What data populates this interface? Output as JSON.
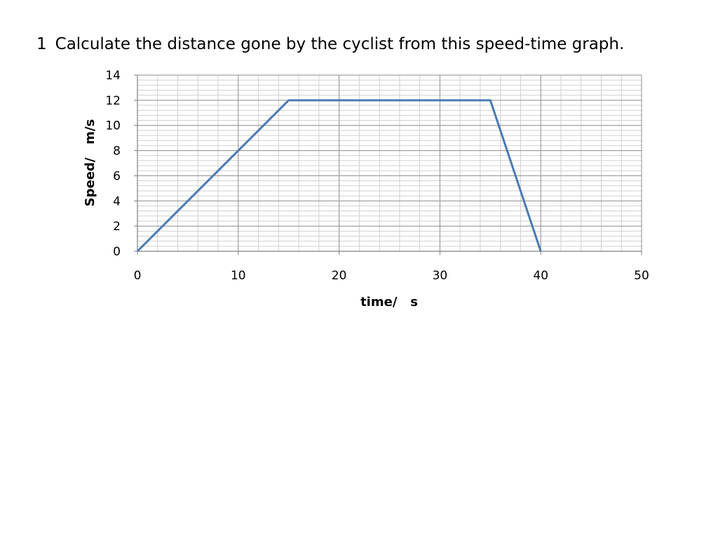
{
  "question": {
    "number": "1",
    "text": "Calculate the distance gone by the cyclist from this speed-time graph."
  },
  "chart_data": {
    "type": "line",
    "xlabel": "time/   s",
    "ylabel": "Speed/   m/s",
    "xlim": [
      0,
      50
    ],
    "ylim": [
      0,
      14
    ],
    "x_ticks": [
      0,
      10,
      20,
      30,
      40,
      50
    ],
    "y_ticks": [
      0,
      2,
      4,
      6,
      8,
      10,
      12,
      14
    ],
    "x_tick_labels": [
      "0",
      "10",
      "20",
      "30",
      "40",
      "50"
    ],
    "y_tick_labels": [
      "0",
      "2",
      "4",
      "6",
      "8",
      "10",
      "12",
      "14"
    ],
    "grid": true,
    "series": [
      {
        "x": [
          0,
          15,
          35,
          40
        ],
        "y": [
          0,
          12,
          12,
          0
        ],
        "color": "#4a7ab5"
      }
    ]
  }
}
